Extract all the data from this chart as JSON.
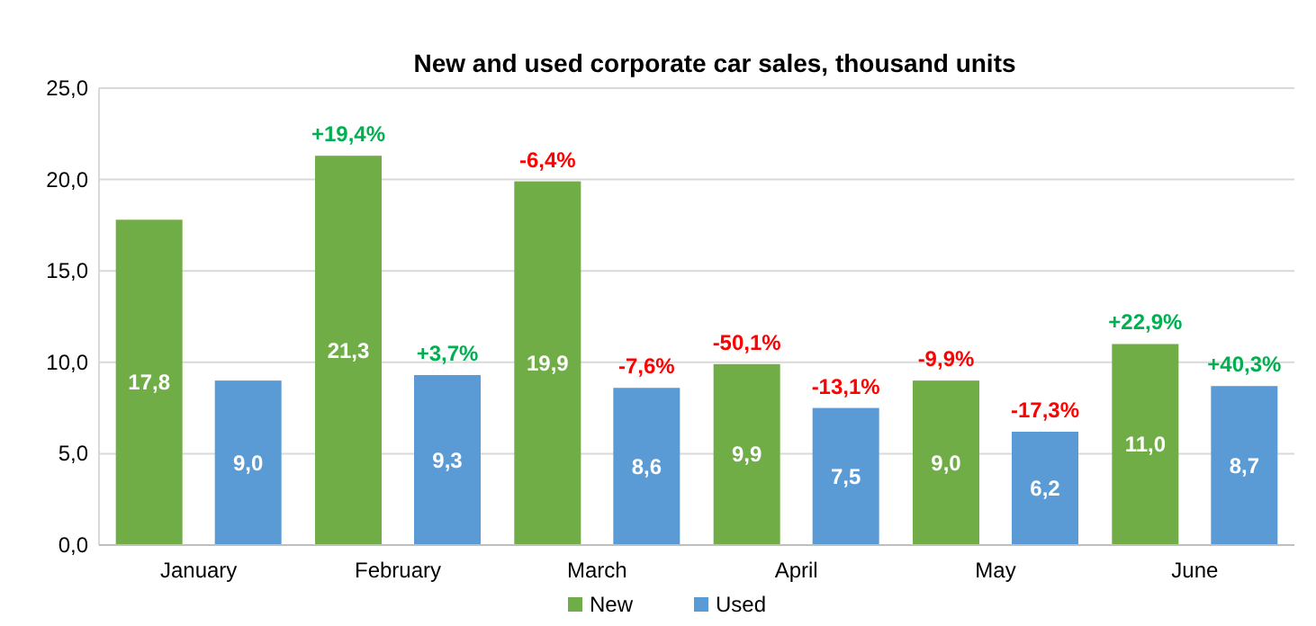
{
  "chart_data": {
    "type": "bar",
    "title": "New and used corporate car sales, thousand units",
    "categories": [
      "January",
      "February",
      "March",
      "April",
      "May",
      "June"
    ],
    "series": [
      {
        "name": "New",
        "color": "#70ad47",
        "values": [
          17.8,
          21.3,
          19.9,
          9.9,
          9.0,
          11.0
        ],
        "value_labels": [
          "17,8",
          "21,3",
          "19,9",
          "9,9",
          "9,0",
          "11,0"
        ]
      },
      {
        "name": "Used",
        "color": "#5b9bd5",
        "values": [
          9.0,
          9.3,
          8.6,
          7.5,
          6.2,
          8.7
        ],
        "value_labels": [
          "9,0",
          "9,3",
          "8,6",
          "7,5",
          "6,2",
          "8,7"
        ]
      }
    ],
    "ylim": [
      0,
      25
    ],
    "yticks": [
      {
        "value": 0,
        "label": "0,0"
      },
      {
        "value": 5,
        "label": "5,0"
      },
      {
        "value": 10,
        "label": "10,0"
      },
      {
        "value": 15,
        "label": "15,0"
      },
      {
        "value": 20,
        "label": "20,0"
      },
      {
        "value": 25,
        "label": "25,0"
      }
    ],
    "grid": "y",
    "legend": "bottom",
    "annotations": [
      "+19,4%",
      "+3,7%",
      "-6,4%",
      "-7,6%",
      "-50,1%",
      "-13,1%",
      "-9,9%",
      "-17,3%",
      "+22,9%",
      "+40,3%"
    ]
  }
}
